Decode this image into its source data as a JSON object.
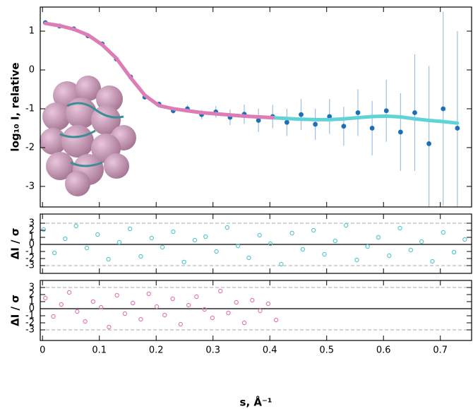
{
  "chart_data": [
    {
      "type": "line",
      "ylabel": "log₁₀ I, relative",
      "xlim": [
        -0.004,
        0.755
      ],
      "ylim": [
        -3.53,
        1.62
      ],
      "xticks": [
        0,
        0.1,
        0.2,
        0.3,
        0.4,
        0.5,
        0.6,
        0.7
      ],
      "yticks": [
        -3,
        -2,
        -1,
        0,
        1
      ],
      "show_xtick_labels": false,
      "series": [
        {
          "style": "points",
          "color": "#1f6fb5",
          "x": [
            0.005,
            0.03,
            0.055,
            0.08,
            0.105,
            0.13,
            0.155,
            0.18,
            0.205,
            0.23,
            0.255,
            0.28,
            0.305,
            0.33,
            0.355,
            0.38,
            0.405,
            0.43,
            0.455,
            0.48,
            0.505,
            0.53,
            0.555,
            0.58,
            0.605,
            0.63,
            0.655,
            0.68,
            0.705,
            0.73
          ],
          "values": [
            1.22,
            1.13,
            1.06,
            0.88,
            0.67,
            0.28,
            -0.18,
            -0.7,
            -0.88,
            -1.05,
            -1.0,
            -1.15,
            -1.08,
            -1.22,
            -1.14,
            -1.3,
            -1.2,
            -1.35,
            -1.15,
            -1.4,
            -1.2,
            -1.45,
            -1.1,
            -1.5,
            -1.05,
            -1.6,
            -1.1,
            -1.9,
            -1.0,
            -1.5
          ],
          "errors": [
            0.02,
            0.01,
            0.01,
            0.01,
            0.01,
            0.01,
            0.02,
            0.03,
            0.05,
            0.08,
            0.1,
            0.12,
            0.15,
            0.2,
            0.25,
            0.3,
            0.3,
            0.35,
            0.4,
            0.4,
            0.45,
            0.5,
            0.6,
            0.7,
            0.8,
            1.0,
            1.5,
            2.0,
            2.5,
            2.5
          ]
        },
        {
          "style": "line",
          "color": "#5fd3d8",
          "x": [
            0.005,
            0.03,
            0.055,
            0.08,
            0.105,
            0.13,
            0.155,
            0.18,
            0.205,
            0.23,
            0.255,
            0.28,
            0.305,
            0.33,
            0.355,
            0.38,
            0.405,
            0.43,
            0.455,
            0.48,
            0.505,
            0.53,
            0.555,
            0.58,
            0.605,
            0.63,
            0.655,
            0.68,
            0.705,
            0.73
          ],
          "values": [
            1.2,
            1.14,
            1.05,
            0.9,
            0.65,
            0.3,
            -0.2,
            -0.65,
            -0.92,
            -1.0,
            -1.05,
            -1.1,
            -1.13,
            -1.16,
            -1.19,
            -1.21,
            -1.23,
            -1.25,
            -1.27,
            -1.28,
            -1.28,
            -1.26,
            -1.23,
            -1.2,
            -1.19,
            -1.21,
            -1.26,
            -1.3,
            -1.33,
            -1.37
          ]
        },
        {
          "style": "line",
          "color": "#e07bb5",
          "x": [
            0.005,
            0.03,
            0.055,
            0.08,
            0.105,
            0.13,
            0.155,
            0.18,
            0.205,
            0.23,
            0.255,
            0.28,
            0.305,
            0.33,
            0.355,
            0.38,
            0.405
          ],
          "values": [
            1.2,
            1.14,
            1.05,
            0.9,
            0.65,
            0.3,
            -0.2,
            -0.65,
            -0.92,
            -1.0,
            -1.05,
            -1.1,
            -1.13,
            -1.16,
            -1.19,
            -1.21,
            -1.23
          ]
        }
      ]
    },
    {
      "type": "scatter",
      "ylabel": "ΔI / σ",
      "xlim": [
        -0.004,
        0.755
      ],
      "ylim": [
        -4.1,
        4.3
      ],
      "xticks": [
        0,
        0.1,
        0.2,
        0.3,
        0.4,
        0.5,
        0.6,
        0.7
      ],
      "yticks": [
        -3,
        -2,
        -1,
        0,
        1,
        2,
        3
      ],
      "show_xtick_labels": false,
      "reference_lines": [
        -3,
        0,
        3
      ],
      "series": [
        {
          "style": "circles",
          "color": "#5cc8cc",
          "x": [
            0.002,
            0.021,
            0.04,
            0.059,
            0.078,
            0.097,
            0.116,
            0.135,
            0.154,
            0.173,
            0.192,
            0.211,
            0.23,
            0.249,
            0.268,
            0.287,
            0.306,
            0.325,
            0.344,
            0.363,
            0.382,
            0.401,
            0.42,
            0.439,
            0.458,
            0.477,
            0.496,
            0.515,
            0.534,
            0.553,
            0.572,
            0.591,
            0.61,
            0.629,
            0.648,
            0.667,
            0.686,
            0.705,
            0.724,
            0.743
          ],
          "values": [
            2.1,
            -1.2,
            0.8,
            2.6,
            -0.5,
            1.4,
            -2.1,
            0.3,
            2.2,
            -1.7,
            0.9,
            -0.4,
            1.8,
            -2.5,
            0.6,
            1.1,
            -1.0,
            2.4,
            -0.2,
            -1.9,
            1.3,
            0.1,
            -2.8,
            1.6,
            -0.7,
            2.0,
            -1.4,
            0.5,
            2.7,
            -2.2,
            -0.3,
            1.0,
            -1.6,
            2.3,
            -0.8,
            0.4,
            -2.4,
            1.7,
            -1.1,
            0.7
          ]
        }
      ]
    },
    {
      "type": "scatter",
      "ylabel": "ΔI / σ",
      "xlabel": "s, Å⁻¹",
      "xlim": [
        -0.004,
        0.755
      ],
      "ylim": [
        -4.5,
        4.0
      ],
      "xticks": [
        0,
        0.1,
        0.2,
        0.3,
        0.4,
        0.5,
        0.6,
        0.7
      ],
      "yticks": [
        -3,
        -2,
        -1,
        0,
        1,
        2,
        3
      ],
      "show_xtick_labels": true,
      "reference_lines": [
        -3,
        0,
        3
      ],
      "series": [
        {
          "style": "circles",
          "color": "#e07bb5",
          "x": [
            0.005,
            0.019,
            0.033,
            0.047,
            0.061,
            0.075,
            0.089,
            0.103,
            0.117,
            0.131,
            0.145,
            0.159,
            0.173,
            0.187,
            0.201,
            0.215,
            0.229,
            0.243,
            0.257,
            0.271,
            0.285,
            0.299,
            0.313,
            0.327,
            0.341,
            0.355,
            0.369,
            0.383,
            0.397,
            0.411
          ],
          "values": [
            1.5,
            -1.1,
            0.6,
            2.3,
            -0.4,
            -1.8,
            1.0,
            0.2,
            -2.6,
            1.9,
            -0.7,
            0.8,
            -1.5,
            2.1,
            0.3,
            -0.9,
            1.4,
            -2.2,
            0.5,
            1.7,
            -0.1,
            -1.3,
            2.5,
            -0.6,
            0.9,
            -2.0,
            1.2,
            -0.3,
            0.7,
            -1.6
          ]
        }
      ]
    }
  ]
}
